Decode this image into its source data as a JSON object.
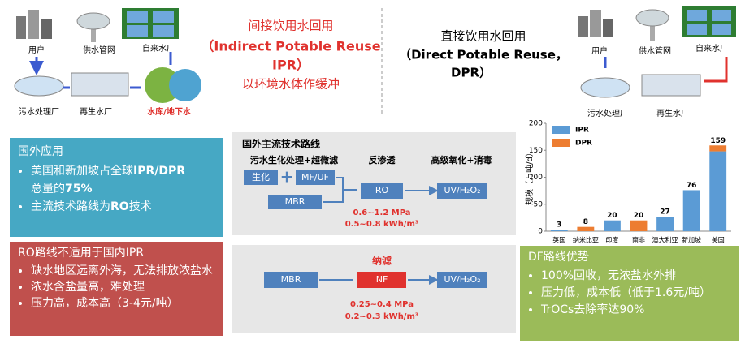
{
  "top_left": {
    "labels": [
      "用户",
      "供水管网",
      "自来水厂",
      "污水处理厂",
      "再生水厂",
      "水库/地下水"
    ]
  },
  "ipr_title": [
    "间接饮用水回用",
    "（Indirect Potable Reuse",
    "IPR）",
    "以环境水体作缓冲"
  ],
  "dpr_title": [
    "直接饮用水回用",
    "（Direct Potable Reuse，",
    "DPR）"
  ],
  "top_right": {
    "labels": [
      "用户",
      "供水管网",
      "自来水厂",
      "污水处理厂",
      "再生水厂"
    ]
  },
  "foreign": {
    "title": "国外应用",
    "bullets": [
      [
        "美国和新加坡占全球",
        "IPR/DPR",
        "总量的",
        "75%"
      ],
      [
        "主流技术路线为",
        "RO",
        "技术"
      ]
    ]
  },
  "process1": {
    "title": "国外主流技术路线",
    "stages": [
      "污水生化处理+超微滤",
      "反渗透",
      "高级氧化+消毒"
    ],
    "boxes": [
      "生化",
      "+",
      "MF/UF",
      "MBR",
      "RO",
      "UV/H₂O₂"
    ],
    "params": [
      "0.6~1.2 MPa",
      "0.5~0.8 kWh/m³"
    ]
  },
  "ro_box": {
    "title": "RO路线不适用于国内IPR",
    "bullets": [
      "缺水地区远离外海，无法排放浓盐水",
      "浓水含盐量高，难处理",
      "压力高，成本高（3-4元/吨）"
    ]
  },
  "process2": {
    "stage": "纳滤",
    "boxes": [
      "MBR",
      "NF",
      "UV/H₂O₂"
    ],
    "params": [
      "0.25~0.4 MPa",
      "0.2~0.3 kWh/m³"
    ]
  },
  "df_box": {
    "title": "DF路线优势",
    "bullets": [
      "100%回收，无浓盐水外排",
      "压力低，成本低（低于1.6元/吨）",
      "TrOCs去除率达90%"
    ]
  },
  "chart_data": {
    "type": "bar",
    "stacked": true,
    "y_label": "规模（万吨/d）",
    "categories": [
      "英国",
      "纳米比亚",
      "印度",
      "南非",
      "澳大利亚",
      "新加坡",
      "美国"
    ],
    "series": [
      {
        "name": "IPR",
        "color": "#5b9bd5",
        "values": [
          3,
          null,
          20,
          null,
          27,
          76,
          148
        ]
      },
      {
        "name": "DPR",
        "color": "#ed7d31",
        "values": [
          null,
          8,
          null,
          20,
          null,
          null,
          11
        ]
      }
    ],
    "total_labels": [
      3,
      8,
      20,
      20,
      27,
      76,
      159
    ],
    "ylim": [
      0,
      200
    ],
    "yticks": [
      0,
      50,
      100,
      150,
      200
    ],
    "legend": "top-left"
  }
}
